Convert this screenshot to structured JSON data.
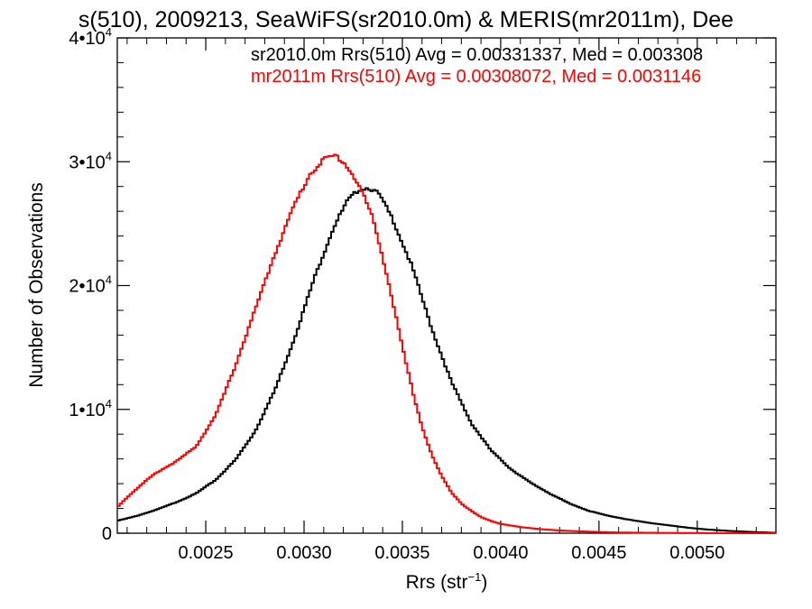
{
  "chart_data": {
    "type": "line",
    "title": "s(510), 2009213, SeaWiFS(sr2010.0m) & MERIS(mr2011m), Dee",
    "xlabel": "Rrs (str",
    "xlabel_sup": "−1",
    "xlabel_end": ")",
    "ylabel": "Number of Observations",
    "xlim": [
      0.00205,
      0.0054
    ],
    "ylim": [
      0,
      40000
    ],
    "xticks": [
      {
        "value": 0.0025,
        "label": "0.0025"
      },
      {
        "value": 0.003,
        "label": "0.0030"
      },
      {
        "value": 0.0035,
        "label": "0.0035"
      },
      {
        "value": 0.004,
        "label": "0.0040"
      },
      {
        "value": 0.0045,
        "label": "0.0045"
      },
      {
        "value": 0.005,
        "label": "0.0050"
      }
    ],
    "yticks": [
      {
        "value": 0,
        "label": "0",
        "exp": ""
      },
      {
        "value": 10000,
        "label": "1•10",
        "exp": "4"
      },
      {
        "value": 20000,
        "label": "2•10",
        "exp": "4"
      },
      {
        "value": 30000,
        "label": "3•10",
        "exp": "4"
      },
      {
        "value": 40000,
        "label": "4•10",
        "exp": "4"
      }
    ],
    "annotations": [
      {
        "text": "sr2010.0m Rrs(510) Avg = 0.00331337, Med = 0.003308",
        "color": "#000000"
      },
      {
        "text": "mr2011m Rrs(510) Avg = 0.00308072, Med = 0.0031146",
        "color": "#ff0000"
      }
    ],
    "series": [
      {
        "color": "#000000",
        "x": [
          0.00205,
          0.00215,
          0.00225,
          0.00235,
          0.00245,
          0.00255,
          0.00265,
          0.00275,
          0.00285,
          0.00295,
          0.00305,
          0.00315,
          0.00322,
          0.00328,
          0.00333,
          0.00338,
          0.00345,
          0.00355,
          0.00365,
          0.00375,
          0.00385,
          0.00395,
          0.00405,
          0.00415,
          0.00425,
          0.00435,
          0.00445,
          0.00455,
          0.00465,
          0.00475,
          0.00485,
          0.00495,
          0.00505,
          0.00515,
          0.00525,
          0.00535,
          0.0054
        ],
        "y": [
          1000,
          1400,
          1900,
          2500,
          3200,
          4300,
          5900,
          8200,
          11500,
          15700,
          20500,
          24700,
          26800,
          27800,
          27900,
          27400,
          25400,
          21500,
          16500,
          12200,
          8900,
          6700,
          5200,
          4100,
          3200,
          2400,
          1800,
          1400,
          1100,
          850,
          650,
          450,
          300,
          200,
          120,
          60,
          30
        ]
      },
      {
        "color": "#ff0000",
        "x": [
          0.00205,
          0.0021,
          0.00215,
          0.0022,
          0.00225,
          0.00235,
          0.00245,
          0.00255,
          0.00265,
          0.00275,
          0.00285,
          0.00295,
          0.00303,
          0.0031,
          0.00316,
          0.0032,
          0.00325,
          0.0033,
          0.00335,
          0.0034,
          0.00345,
          0.0035,
          0.00355,
          0.0036,
          0.00365,
          0.0037,
          0.00375,
          0.0038,
          0.00385,
          0.0039,
          0.00395,
          0.004,
          0.0041,
          0.0042,
          0.0043,
          0.0044,
          0.0045,
          0.0046,
          0.0048,
          0.005,
          0.0052,
          0.0054
        ],
        "y": [
          2100,
          2900,
          3600,
          4300,
          4900,
          5800,
          7000,
          9500,
          13500,
          18000,
          22500,
          26500,
          29000,
          30200,
          30500,
          30000,
          28900,
          27400,
          25400,
          22300,
          18800,
          15000,
          11600,
          8600,
          6300,
          4600,
          3300,
          2400,
          1800,
          1300,
          1000,
          750,
          500,
          330,
          220,
          150,
          100,
          60,
          30,
          15,
          5,
          2
        ]
      }
    ]
  }
}
